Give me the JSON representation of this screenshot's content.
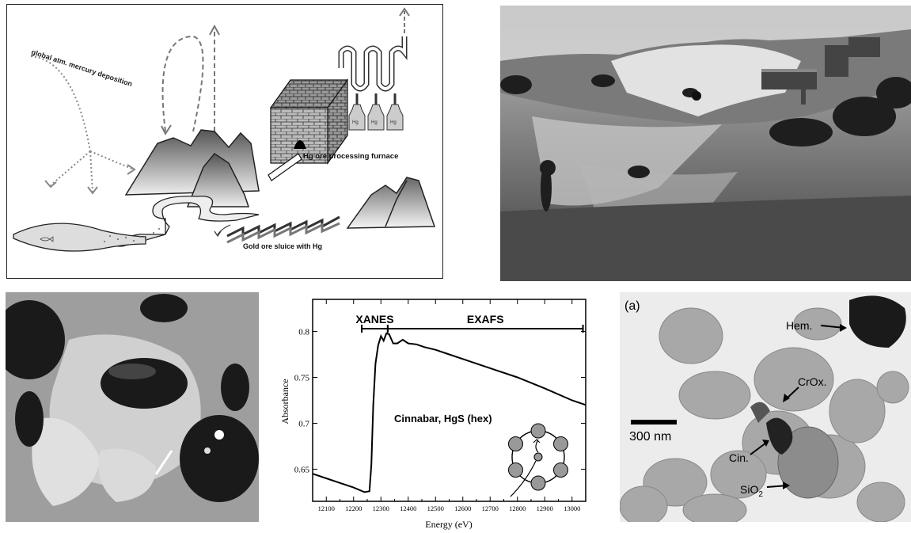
{
  "diagram": {
    "deposition_label": "global atm. mercury deposition",
    "furnace_label": "Hg ore processing furnace",
    "sluice_label": "Gold ore sluice with Hg",
    "flask_label": "Hg"
  },
  "tem": {
    "panel_label": "(a)",
    "scale_label": "300 nm",
    "labels": {
      "hem": "Hem.",
      "crox": "CrOx.",
      "cin": "Cin.",
      "sio2_base": "SiO",
      "sio2_sub": "2"
    }
  },
  "chart_data": {
    "type": "line",
    "title": "",
    "xlabel": "Energy (eV)",
    "ylabel": "Absorbance",
    "xlim": [
      12050,
      13050
    ],
    "ylim": [
      0.615,
      0.835
    ],
    "x_ticks": [
      12100,
      12200,
      12300,
      12400,
      12500,
      12600,
      12700,
      12800,
      12900,
      13000
    ],
    "y_ticks": [
      0.65,
      0.7,
      0.75,
      0.8
    ],
    "annotation": "Cinnabar, HgS (hex)",
    "regions": [
      {
        "label": "XANES",
        "start": 12230,
        "end": 12325
      },
      {
        "label": "EXAFS",
        "start": 12325,
        "end": 13040
      }
    ],
    "series": [
      {
        "x": [
          12050,
          12100,
          12150,
          12200,
          12240,
          12258,
          12265,
          12272,
          12280,
          12290,
          12300,
          12310,
          12320,
          12330,
          12345,
          12360,
          12380,
          12400,
          12430,
          12460,
          12500,
          12550,
          12600,
          12700,
          12800,
          12900,
          13000,
          13050
        ],
        "y": [
          0.645,
          0.64,
          0.635,
          0.63,
          0.625,
          0.626,
          0.655,
          0.72,
          0.765,
          0.785,
          0.795,
          0.79,
          0.798,
          0.797,
          0.787,
          0.787,
          0.791,
          0.787,
          0.786,
          0.783,
          0.78,
          0.775,
          0.77,
          0.76,
          0.75,
          0.738,
          0.725,
          0.72
        ]
      }
    ]
  }
}
